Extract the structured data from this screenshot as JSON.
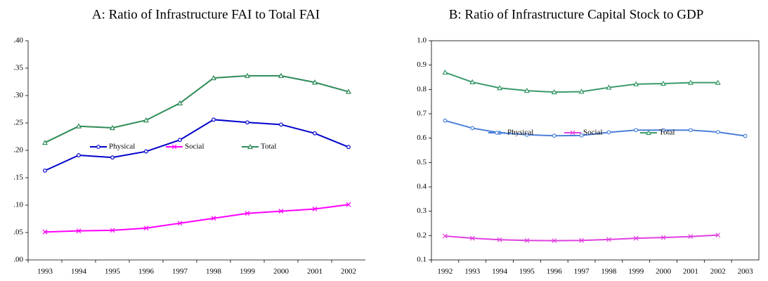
{
  "chart_data": [
    {
      "type": "line",
      "title": "A: Ratio of Infrastructure FAI to Total FAI",
      "categories": [
        "1993",
        "1994",
        "1995",
        "1996",
        "1997",
        "1998",
        "1999",
        "2000",
        "2001",
        "2002"
      ],
      "ylim": [
        0,
        0.4
      ],
      "yticks": [
        {
          "value": 0,
          "label": ".00"
        },
        {
          "value": 0.05,
          "label": ".05"
        },
        {
          "value": 0.1,
          "label": ".10"
        },
        {
          "value": 0.15,
          "label": ".15"
        },
        {
          "value": 0.2,
          "label": ".20"
        },
        {
          "value": 0.25,
          "label": ".25"
        },
        {
          "value": 0.3,
          "label": ".30"
        },
        {
          "value": 0.35,
          "label": ".35"
        },
        {
          "value": 0.4,
          "label": ".40"
        }
      ],
      "frame": false,
      "legend": "center",
      "series": [
        {
          "name": "Physical",
          "color": "#0000cc",
          "values": [
            0.163,
            0.191,
            0.187,
            0.198,
            0.219,
            0.256,
            0.251,
            0.247,
            0.231,
            0.206
          ]
        },
        {
          "name": "Social",
          "color": "#ff00ff",
          "values": [
            0.051,
            0.053,
            0.054,
            0.058,
            0.067,
            0.076,
            0.085,
            0.089,
            0.093,
            0.101
          ]
        },
        {
          "name": "Total",
          "color": "#2e8b57",
          "values": [
            0.214,
            0.244,
            0.241,
            0.255,
            0.286,
            0.332,
            0.336,
            0.336,
            0.324,
            0.307
          ]
        }
      ]
    },
    {
      "type": "line",
      "title": "B: Ratio of Infrastructure Capital Stock to GDP",
      "categories": [
        "1992",
        "1993",
        "1994",
        "1995",
        "1996",
        "1997",
        "1998",
        "1999",
        "2000",
        "2001",
        "2002",
        "2003"
      ],
      "ylim": [
        0.1,
        1
      ],
      "yticks": [
        0.1,
        0.2,
        0.3,
        0.4,
        0.5,
        0.6,
        0.7,
        0.8,
        0.9,
        {
          "value": 1,
          "label": "1.0"
        }
      ],
      "frame": true,
      "legend": "center",
      "series": [
        {
          "name": "Physical",
          "color": "#4a7fd8",
          "values": [
            0.672,
            0.641,
            0.622,
            0.614,
            0.61,
            0.611,
            0.624,
            0.633,
            0.633,
            0.633,
            0.625,
            0.609
          ]
        },
        {
          "name": "Social",
          "color": "#e040e0",
          "values": [
            0.198,
            0.189,
            0.183,
            0.18,
            0.179,
            0.18,
            0.184,
            0.189,
            0.192,
            0.196,
            0.202,
            null
          ]
        },
        {
          "name": "Total",
          "color": "#3a9a6a",
          "values": [
            0.87,
            0.83,
            0.806,
            0.795,
            0.789,
            0.791,
            0.808,
            0.822,
            0.824,
            0.828,
            0.828,
            null
          ]
        }
      ]
    }
  ]
}
